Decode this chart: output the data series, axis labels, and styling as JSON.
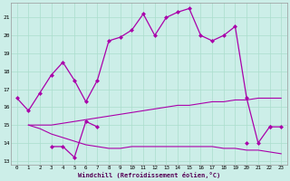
{
  "xlabel": "Windchill (Refroidissement éolien,°C)",
  "background_color": "#cceee8",
  "grid_color": "#aaddcc",
  "line_color": "#aa00aa",
  "x_values": [
    0,
    1,
    2,
    3,
    4,
    5,
    6,
    7,
    8,
    9,
    10,
    11,
    12,
    13,
    14,
    15,
    16,
    17,
    18,
    19,
    20,
    21,
    22,
    23
  ],
  "main_line": [
    16.5,
    15.8,
    16.8,
    17.8,
    18.5,
    17.5,
    16.3,
    17.5,
    19.7,
    19.9,
    20.3,
    21.2,
    20.0,
    21.0,
    21.3,
    21.5,
    20.0,
    19.7,
    20.0,
    20.5,
    16.5,
    14.0,
    14.9,
    14.9
  ],
  "zigzag_line": [
    null,
    null,
    null,
    13.8,
    13.8,
    13.2,
    15.2,
    14.9,
    null,
    null,
    null,
    null,
    null,
    null,
    null,
    null,
    null,
    null,
    null,
    null,
    14.0,
    null,
    14.9,
    null
  ],
  "rise_line": [
    null,
    15.0,
    15.0,
    15.0,
    15.1,
    15.2,
    15.3,
    15.4,
    15.5,
    15.6,
    15.7,
    15.8,
    15.9,
    16.0,
    16.1,
    16.1,
    16.2,
    16.3,
    16.3,
    16.4,
    16.4,
    16.5,
    16.5,
    16.5
  ],
  "fall_line": [
    null,
    15.0,
    14.8,
    14.5,
    14.3,
    14.1,
    13.9,
    13.8,
    13.7,
    13.7,
    13.8,
    13.8,
    13.8,
    13.8,
    13.8,
    13.8,
    13.8,
    13.8,
    13.7,
    13.7,
    13.6,
    13.6,
    13.5,
    13.4
  ],
  "xlim": [
    -0.5,
    23.5
  ],
  "ylim": [
    12.8,
    21.8
  ]
}
